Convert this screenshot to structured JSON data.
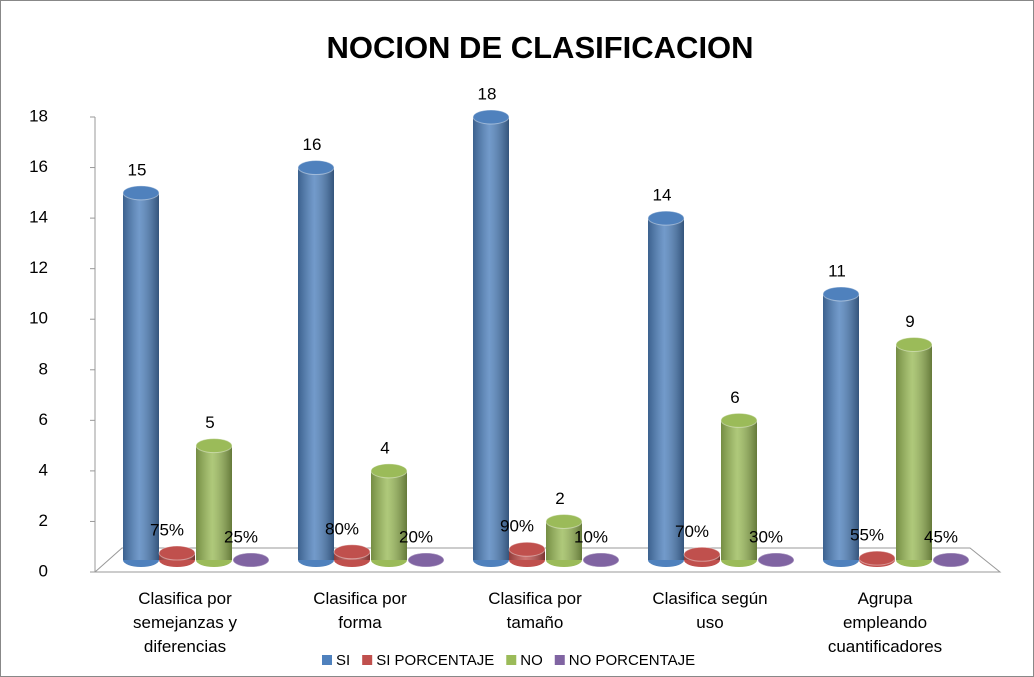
{
  "chart_data": {
    "type": "bar",
    "title": "NOCION DE CLASIFICACION",
    "categories": [
      "Clasifica por semejanzas y diferencias",
      "Clasifica por forma",
      "Clasifica por tamaño",
      "Clasifica según uso",
      "Agrupa empleando cuantificadores"
    ],
    "series": [
      {
        "name": "SI",
        "color": "#4f81bd",
        "values": [
          15,
          16,
          18,
          14,
          11
        ]
      },
      {
        "name": "SI PORCENTAJE",
        "color": "#c0504d",
        "values": [
          0.75,
          0.8,
          0.9,
          0.7,
          0.55
        ],
        "value_labels": [
          "75%",
          "80%",
          "90%",
          "70%",
          "55%"
        ]
      },
      {
        "name": "NO",
        "color": "#9bbb59",
        "values": [
          5,
          4,
          2,
          6,
          9
        ]
      },
      {
        "name": "NO PORCENTAJE",
        "color": "#8064a2",
        "values": [
          0.25,
          0.2,
          0.1,
          0.3,
          0.45
        ],
        "value_labels": [
          "25%",
          "20%",
          "10%",
          "30%",
          "45%"
        ]
      }
    ],
    "ylim": [
      0,
      18
    ],
    "yticks": [
      0,
      2,
      4,
      6,
      8,
      10,
      12,
      14,
      16,
      18
    ],
    "legend": "bottom"
  }
}
